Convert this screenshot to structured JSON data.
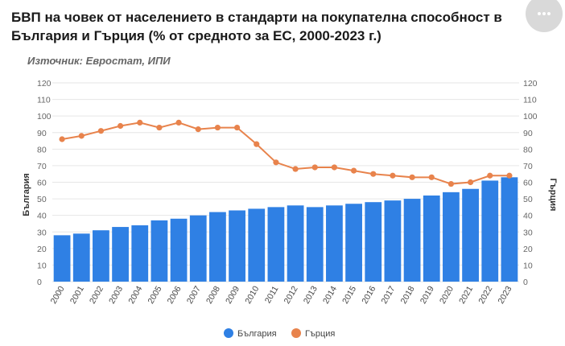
{
  "title": "БВП на човек от населението в стандарти на покупателна способност в България и Гърция (% от средното за ЕС, 2000-2023 г.)",
  "source": "Източник: Евростат, ИПИ",
  "menu_icon": "more-horizontal-icon",
  "colors": {
    "bulgaria": "#2f80e4",
    "greece": "#e8834c",
    "grid": "#e6e6e6",
    "menu_bg": "#d9d9d9"
  },
  "chart_data": {
    "type": "bar",
    "categories": [
      "2000",
      "2001",
      "2002",
      "2003",
      "2004",
      "2005",
      "2006",
      "2007",
      "2008",
      "2009",
      "2010",
      "2011",
      "2012",
      "2013",
      "2014",
      "2015",
      "2016",
      "2017",
      "2018",
      "2019",
      "2020",
      "2021",
      "2022",
      "2023"
    ],
    "series": [
      {
        "name": "България",
        "type": "bar",
        "axis": "left",
        "color": "#2f80e4",
        "values": [
          28,
          29,
          31,
          33,
          34,
          37,
          38,
          40,
          42,
          43,
          44,
          45,
          46,
          45,
          46,
          47,
          48,
          49,
          50,
          52,
          54,
          56,
          61,
          63
        ]
      },
      {
        "name": "Гърция",
        "type": "line",
        "axis": "right",
        "color": "#e8834c",
        "values": [
          86,
          88,
          91,
          94,
          96,
          93,
          96,
          92,
          93,
          93,
          83,
          72,
          68,
          69,
          69,
          67,
          65,
          64,
          63,
          63,
          59,
          60,
          64,
          64
        ]
      }
    ],
    "ylabel_left": "България",
    "ylabel_right": "Гърция",
    "ylim": [
      0,
      120
    ],
    "yticks": [
      0,
      10,
      20,
      30,
      40,
      50,
      60,
      70,
      80,
      90,
      100,
      110,
      120
    ],
    "grid": true,
    "legend_position": "bottom-center"
  }
}
